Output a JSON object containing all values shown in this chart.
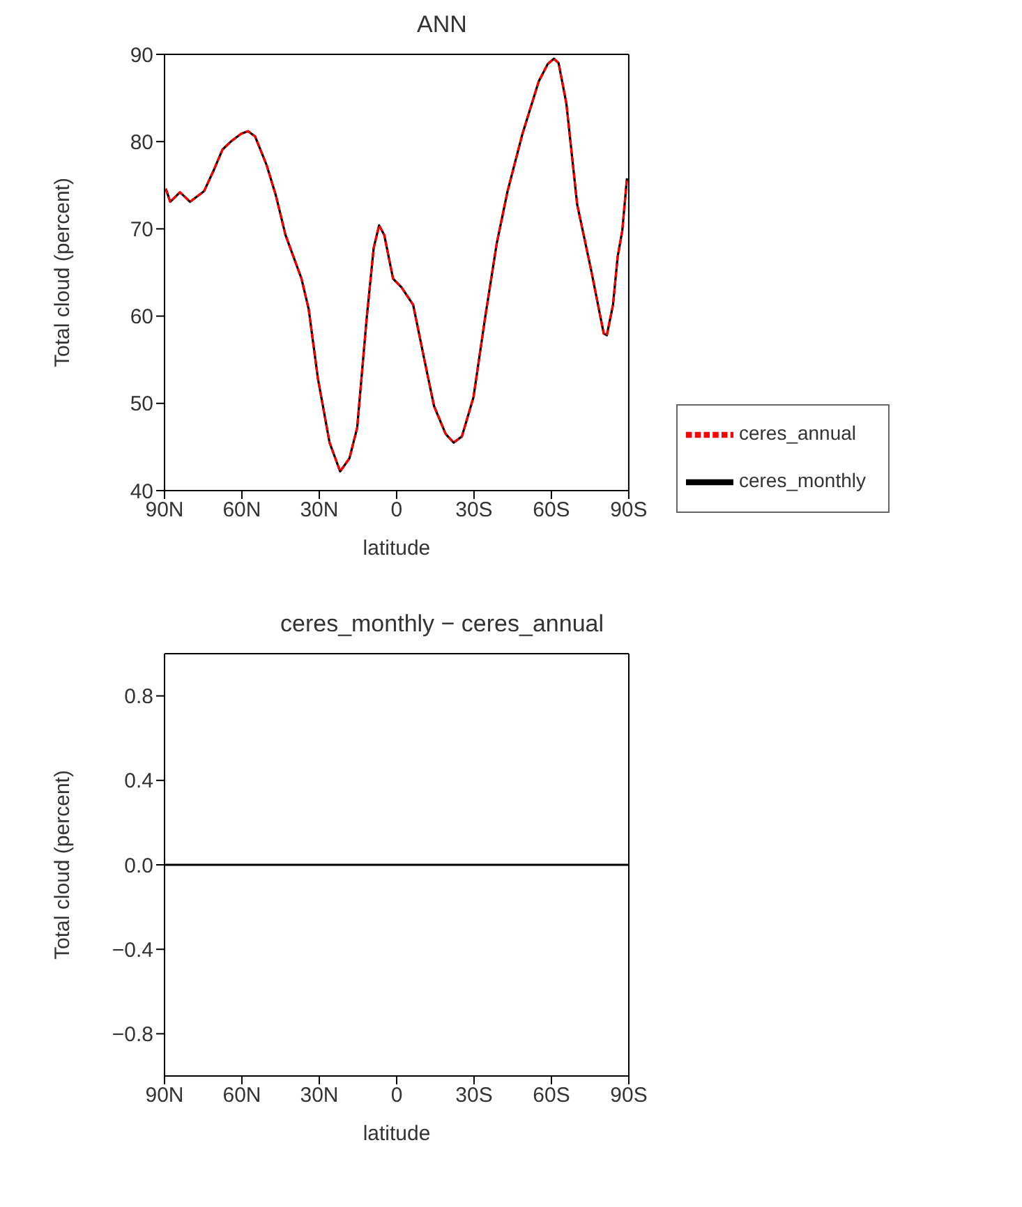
{
  "chart_data": [
    {
      "type": "line",
      "title": "ANN",
      "xlabel": "latitude",
      "ylabel": "Total cloud (percent)",
      "xlim": [
        90,
        -90
      ],
      "xticks": [
        {
          "value": 90,
          "label": "90N"
        },
        {
          "value": 60,
          "label": "60N"
        },
        {
          "value": 30,
          "label": "30N"
        },
        {
          "value": 0,
          "label": "0"
        },
        {
          "value": -30,
          "label": "30S"
        },
        {
          "value": -60,
          "label": "60S"
        },
        {
          "value": -90,
          "label": "90S"
        }
      ],
      "ylim": [
        40,
        90
      ],
      "yticks": [
        40,
        50,
        60,
        70,
        80,
        90
      ],
      "grid": false,
      "legend": "right",
      "marker": "none",
      "x": [
        89.5,
        87.8,
        84,
        80.1,
        74.7,
        71.1,
        67.5,
        63.9,
        60.3,
        57.6,
        54.9,
        50.4,
        46.8,
        43.1,
        36.9,
        34.1,
        30.5,
        26,
        21.9,
        18.3,
        15.3,
        11.6,
        8.9,
        6.8,
        4.8,
        1.4,
        -1.9,
        -6.4,
        -10.9,
        -14.5,
        -19,
        -22.1,
        -25.3,
        -29.8,
        -34.3,
        -38.8,
        -43,
        -48.8,
        -55.1,
        -58.6,
        -61,
        -62.8,
        -65.8,
        -70,
        -75.4,
        -80.3,
        -81.5,
        -83.9,
        -85.7,
        -87.5,
        -89.3
      ],
      "series": [
        {
          "name": "ceres_monthly",
          "color": "#000000",
          "line_style": "solid",
          "values": [
            74.6,
            73.1,
            74.2,
            73.1,
            74.3,
            76.6,
            79.1,
            80.1,
            80.9,
            81.2,
            80.6,
            77.3,
            73.8,
            69.3,
            64.3,
            60.8,
            52.8,
            45.5,
            42.2,
            43.7,
            47.2,
            59.8,
            67.8,
            70.4,
            69.3,
            64.3,
            63.3,
            61.3,
            54.8,
            49.7,
            46.5,
            45.5,
            46.2,
            50.7,
            59.8,
            68.3,
            74.3,
            80.9,
            86.9,
            88.9,
            89.5,
            89,
            84.4,
            72.8,
            65.3,
            58,
            57.8,
            61.3,
            66.8,
            69.8,
            75.8
          ]
        },
        {
          "name": "ceres_annual",
          "color": "#ff0000",
          "line_style": "dashed",
          "values": [
            74.6,
            73.1,
            74.2,
            73.1,
            74.3,
            76.6,
            79.1,
            80.1,
            80.9,
            81.2,
            80.6,
            77.3,
            73.8,
            69.3,
            64.3,
            60.8,
            52.8,
            45.5,
            42.2,
            43.7,
            47.2,
            59.8,
            67.8,
            70.4,
            69.3,
            64.3,
            63.3,
            61.3,
            54.8,
            49.7,
            46.5,
            45.5,
            46.2,
            50.7,
            59.8,
            68.3,
            74.3,
            80.9,
            86.9,
            88.9,
            89.5,
            89,
            84.4,
            72.8,
            65.3,
            58,
            57.8,
            61.3,
            66.8,
            69.8,
            75.8
          ]
        }
      ]
    },
    {
      "type": "line",
      "title": "ceres_monthly − ceres_annual",
      "xlabel": "latitude",
      "ylabel": "Total cloud (percent)",
      "xlim": [
        90,
        -90
      ],
      "xticks": [
        {
          "value": 90,
          "label": "90N"
        },
        {
          "value": 60,
          "label": "60N"
        },
        {
          "value": 30,
          "label": "30N"
        },
        {
          "value": 0,
          "label": "0"
        },
        {
          "value": -30,
          "label": "30S"
        },
        {
          "value": -60,
          "label": "60S"
        },
        {
          "value": -90,
          "label": "90S"
        }
      ],
      "ylim": [
        -1,
        1
      ],
      "yticks": [
        {
          "value": -0.8,
          "label": "−0.8"
        },
        {
          "value": -0.4,
          "label": "−0.4"
        },
        {
          "value": 0,
          "label": "0.0"
        },
        {
          "value": 0.4,
          "label": "0.4"
        },
        {
          "value": 0.8,
          "label": "0.8"
        }
      ],
      "grid": false,
      "legend": false,
      "marker": "none",
      "x": [
        90,
        -90
      ],
      "series": [
        {
          "color": "#000000",
          "line_style": "solid",
          "values": [
            0,
            0
          ]
        }
      ]
    }
  ]
}
